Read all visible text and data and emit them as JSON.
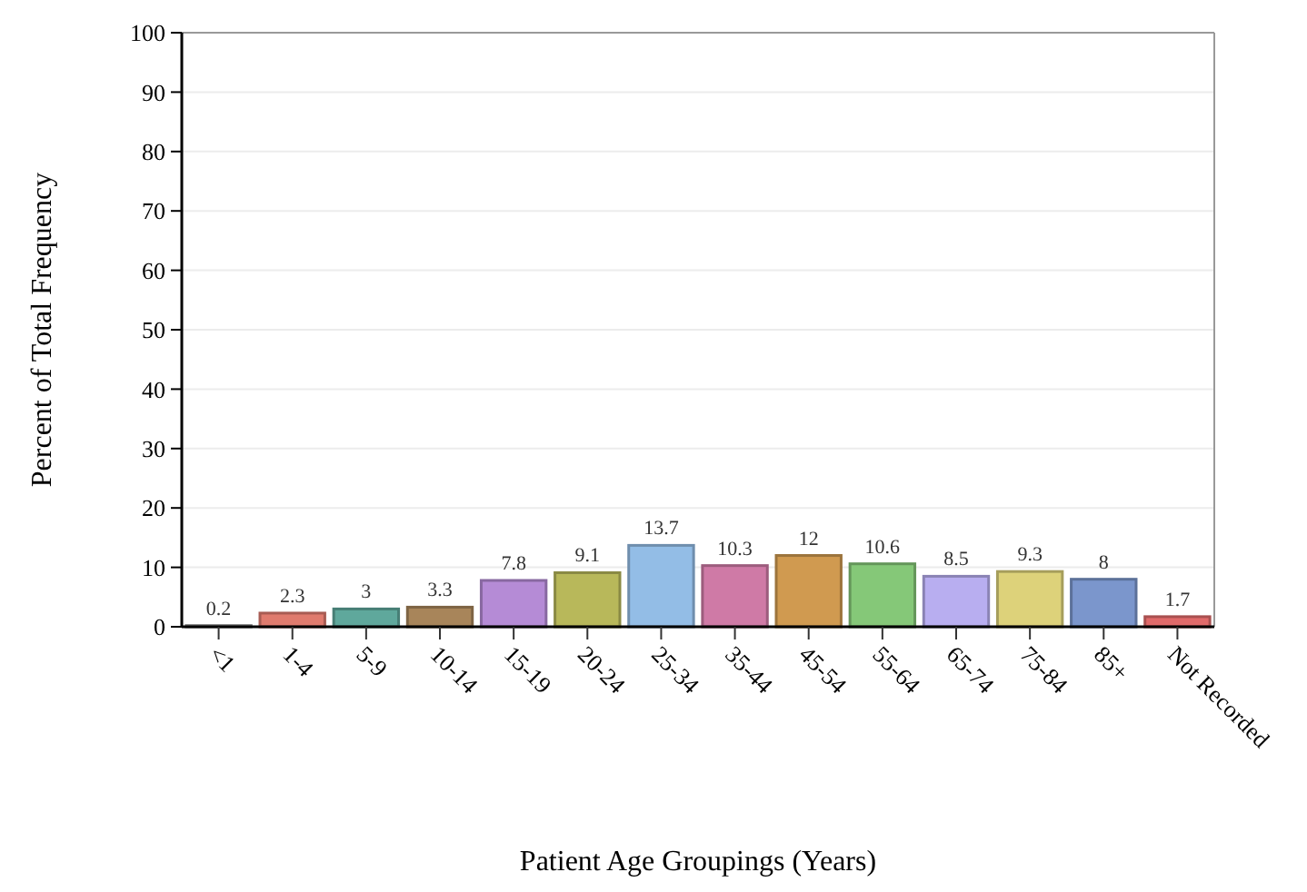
{
  "chart_data": {
    "type": "bar",
    "xlabel": "Patient Age Groupings (Years)",
    "ylabel": "Percent of Total Frequency",
    "categories": [
      "<1",
      "1-4",
      "5-9",
      "10-14",
      "15-19",
      "20-24",
      "25-34",
      "35-44",
      "45-54",
      "55-64",
      "65-74",
      "75-84",
      "85+",
      "Not Recorded"
    ],
    "values": [
      0.2,
      2.3,
      3,
      3.3,
      7.8,
      9.1,
      13.7,
      10.3,
      12,
      10.6,
      8.5,
      9.3,
      8,
      1.7
    ],
    "colors": [
      "#9a9a9a",
      "#e07b6e",
      "#5fa89c",
      "#a8855a",
      "#b58bd6",
      "#b8b85a",
      "#93bde6",
      "#cf7aa6",
      "#d09a50",
      "#85c878",
      "#b8aef0",
      "#ddd27a",
      "#7b96cc",
      "#e06a6a"
    ],
    "ylim": [
      0,
      100
    ],
    "yticks": [
      0,
      10,
      20,
      30,
      40,
      50,
      60,
      70,
      80,
      90,
      100
    ],
    "grid": "y",
    "data_labels": true
  }
}
